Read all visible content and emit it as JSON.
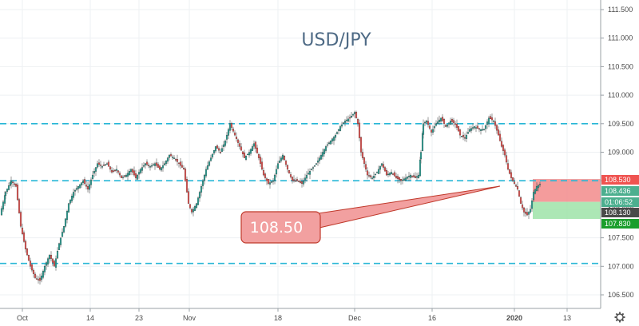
{
  "chart_data": {
    "type": "candlestick",
    "title": "USD/JPY",
    "ylim": [
      106.35,
      111.65
    ],
    "y_ticks": [
      "111.500",
      "111.000",
      "110.500",
      "110.000",
      "109.500",
      "109.000",
      "108.500",
      "108.000",
      "107.500",
      "107.000",
      "106.500"
    ],
    "x_ticks": [
      "Oct",
      "14",
      "23",
      "Nov",
      "18",
      "Dec",
      "16",
      "2020",
      "13"
    ],
    "horizontal_levels": [
      109.5,
      108.5,
      107.05
    ],
    "callout": {
      "label": "108.50",
      "points_to_price": 108.5
    },
    "price_labels": [
      {
        "text": "108.530",
        "color": "#ef5350"
      },
      {
        "text": "108.436",
        "color": "#4caf8f"
      },
      {
        "text": "01:06:52",
        "color": "#4caf8f"
      },
      {
        "text": "108.130",
        "color": "#4a4a4a"
      },
      {
        "text": "107.830",
        "color": "#1b9e2c"
      }
    ],
    "position_zones": [
      {
        "name": "stop",
        "from": 108.13,
        "to": 108.53,
        "color": "#f28b8b"
      },
      {
        "name": "target",
        "from": 107.83,
        "to": 108.13,
        "color": "#9ee3a8"
      }
    ],
    "series": [
      {
        "points": [
          [
            0,
            107.9
          ],
          [
            7,
            108.3
          ],
          [
            14,
            108.5
          ],
          [
            20,
            108.4
          ],
          [
            26,
            107.7
          ],
          [
            32,
            107.3
          ],
          [
            38,
            107.0
          ],
          [
            44,
            106.8
          ],
          [
            50,
            106.75
          ],
          [
            56,
            107.0
          ],
          [
            62,
            107.2
          ],
          [
            68,
            107.0
          ],
          [
            74,
            107.4
          ],
          [
            80,
            107.7
          ],
          [
            86,
            108.1
          ],
          [
            92,
            108.3
          ],
          [
            98,
            108.4
          ],
          [
            104,
            108.5
          ],
          [
            110,
            108.35
          ],
          [
            116,
            108.6
          ],
          [
            122,
            108.8
          ],
          [
            128,
            108.75
          ],
          [
            134,
            108.8
          ],
          [
            140,
            108.65
          ],
          [
            146,
            108.7
          ],
          [
            152,
            108.55
          ],
          [
            158,
            108.6
          ],
          [
            164,
            108.7
          ],
          [
            170,
            108.55
          ],
          [
            176,
            108.7
          ],
          [
            182,
            108.8
          ],
          [
            188,
            108.75
          ],
          [
            194,
            108.8
          ],
          [
            200,
            108.7
          ],
          [
            206,
            108.8
          ],
          [
            212,
            108.95
          ],
          [
            218,
            108.9
          ],
          [
            224,
            108.8
          ],
          [
            230,
            108.7
          ],
          [
            236,
            108.1
          ],
          [
            240,
            107.95
          ],
          [
            246,
            108.1
          ],
          [
            252,
            108.4
          ],
          [
            258,
            108.7
          ],
          [
            264,
            108.9
          ],
          [
            270,
            109.1
          ],
          [
            276,
            109.0
          ],
          [
            282,
            109.2
          ],
          [
            288,
            109.5
          ],
          [
            294,
            109.3
          ],
          [
            300,
            109.1
          ],
          [
            306,
            108.9
          ],
          [
            312,
            109.0
          ],
          [
            318,
            109.15
          ],
          [
            324,
            108.9
          ],
          [
            330,
            108.6
          ],
          [
            336,
            108.45
          ],
          [
            342,
            108.5
          ],
          [
            348,
            108.8
          ],
          [
            354,
            108.95
          ],
          [
            360,
            108.7
          ],
          [
            366,
            108.5
          ],
          [
            372,
            108.5
          ],
          [
            378,
            108.45
          ],
          [
            384,
            108.6
          ],
          [
            390,
            108.7
          ],
          [
            396,
            108.8
          ],
          [
            402,
            108.95
          ],
          [
            408,
            109.1
          ],
          [
            414,
            109.2
          ],
          [
            420,
            109.3
          ],
          [
            426,
            109.45
          ],
          [
            432,
            109.55
          ],
          [
            438,
            109.6
          ],
          [
            444,
            109.7
          ],
          [
            448,
            109.5
          ],
          [
            452,
            109.0
          ],
          [
            456,
            108.8
          ],
          [
            460,
            108.6
          ],
          [
            466,
            108.55
          ],
          [
            472,
            108.65
          ],
          [
            478,
            108.8
          ],
          [
            484,
            108.6
          ],
          [
            490,
            108.65
          ],
          [
            496,
            108.55
          ],
          [
            502,
            108.5
          ],
          [
            508,
            108.55
          ],
          [
            514,
            108.6
          ],
          [
            520,
            108.55
          ],
          [
            524,
            108.6
          ],
          [
            527,
            109.0
          ],
          [
            530,
            109.5
          ],
          [
            534,
            109.55
          ],
          [
            540,
            109.35
          ],
          [
            546,
            109.5
          ],
          [
            552,
            109.6
          ],
          [
            558,
            109.45
          ],
          [
            564,
            109.55
          ],
          [
            570,
            109.5
          ],
          [
            576,
            109.3
          ],
          [
            582,
            109.25
          ],
          [
            588,
            109.4
          ],
          [
            594,
            109.45
          ],
          [
            600,
            109.4
          ],
          [
            606,
            109.4
          ],
          [
            612,
            109.6
          ],
          [
            618,
            109.55
          ],
          [
            624,
            109.3
          ],
          [
            628,
            109.1
          ],
          [
            632,
            108.95
          ],
          [
            636,
            108.7
          ],
          [
            640,
            108.55
          ],
          [
            644,
            108.45
          ],
          [
            648,
            108.35
          ],
          [
            652,
            108.1
          ],
          [
            656,
            107.95
          ],
          [
            660,
            107.9
          ],
          [
            664,
            108.0
          ],
          [
            668,
            108.3
          ],
          [
            672,
            108.4
          ],
          [
            676,
            108.44
          ]
        ]
      }
    ]
  }
}
